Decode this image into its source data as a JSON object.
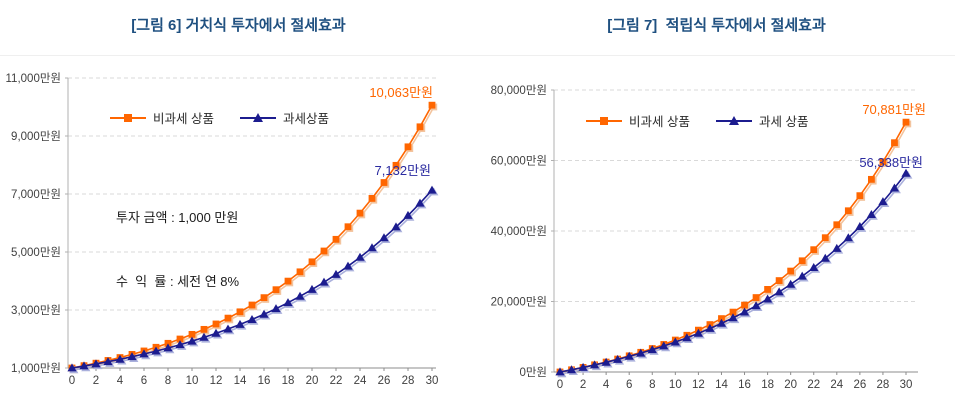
{
  "page": {
    "background": "#ffffff"
  },
  "colors": {
    "title": "#1F5080",
    "axis_text": "#404040",
    "tax_free": "#FF6600",
    "taxable": "#1C1C8F",
    "tax_free_label": "#FF6600",
    "taxable_label": "#2B2BA0",
    "gridline": "#D9D9D9"
  },
  "chart_data": [
    {
      "type": "line",
      "title": "[그림 6] 거치식 투자에서 절세효과",
      "xlabel": "",
      "ylabel": "",
      "unit": "만원",
      "x": [
        0,
        1,
        2,
        3,
        4,
        5,
        6,
        7,
        8,
        9,
        10,
        11,
        12,
        13,
        14,
        15,
        16,
        17,
        18,
        19,
        20,
        21,
        22,
        23,
        24,
        25,
        26,
        27,
        28,
        29,
        30
      ],
      "x_ticks": [
        0,
        2,
        4,
        6,
        8,
        10,
        12,
        14,
        16,
        18,
        20,
        22,
        24,
        26,
        28,
        30
      ],
      "ylim": [
        1000,
        11000
      ],
      "y_ticks": [
        1000,
        3000,
        5000,
        7000,
        9000,
        11000
      ],
      "y_tick_labels": [
        "1,000만원",
        "3,000만원",
        "5,000만원",
        "7,000만원",
        "9,000만원",
        "11,000만원"
      ],
      "grid": "dashed-horizontal",
      "legend_position": "top-inside",
      "series": [
        {
          "id": "tax-free-series",
          "name": "비과세 상품",
          "color": "#FF6600",
          "marker": "square",
          "values": [
            1000,
            1080,
            1166,
            1260,
            1360,
            1469,
            1587,
            1714,
            1851,
            1999,
            2159,
            2332,
            2518,
            2720,
            2937,
            3172,
            3426,
            3700,
            3996,
            4316,
            4661,
            5034,
            5437,
            5871,
            6341,
            6848,
            7396,
            7988,
            8627,
            9317,
            10063
          ]
        },
        {
          "id": "taxable-series",
          "name": "과세상품",
          "color": "#1C1C8F",
          "marker": "triangle",
          "values": [
            1000,
            1068,
            1140,
            1217,
            1300,
            1388,
            1482,
            1582,
            1689,
            1803,
            1925,
            2056,
            2195,
            2343,
            2502,
            2671,
            2852,
            3045,
            3251,
            3471,
            3706,
            3957,
            4225,
            4511,
            4816,
            5142,
            5490,
            5862,
            6258,
            6682,
            7132
          ]
        }
      ],
      "annotation": {
        "line1": "투자 금액 : 1,000 만원",
        "line2": "수  익  률 : 세전 연 8%"
      },
      "end_labels": [
        {
          "text": "10,063만원",
          "series": "비과세 상품",
          "color": "#FF6600"
        },
        {
          "text": "7,132만원",
          "series": "과세상품",
          "color": "#2B2BA0"
        }
      ]
    },
    {
      "type": "line",
      "title": "[그림 7]  적립식 투자에서 절세효과",
      "xlabel": "",
      "ylabel": "",
      "unit": "만원",
      "x": [
        0,
        1,
        2,
        3,
        4,
        5,
        6,
        7,
        8,
        9,
        10,
        11,
        12,
        13,
        14,
        15,
        16,
        17,
        18,
        19,
        20,
        21,
        22,
        23,
        24,
        25,
        26,
        27,
        28,
        29,
        30
      ],
      "x_ticks": [
        0,
        2,
        4,
        6,
        8,
        10,
        12,
        14,
        16,
        18,
        20,
        22,
        24,
        26,
        28,
        30
      ],
      "ylim": [
        0,
        80000
      ],
      "y_ticks": [
        0,
        20000,
        40000,
        60000,
        80000
      ],
      "y_tick_labels": [
        "0만원",
        "20,000만원",
        "40,000만원",
        "60,000만원",
        "80,000만원"
      ],
      "grid": "dashed-horizontal",
      "legend_position": "top-inside",
      "series": [
        {
          "id": "tax-free-series",
          "name": "비과세 상품",
          "color": "#FF6600",
          "marker": "square",
          "values": [
            0,
            626,
            1301,
            2031,
            2819,
            3670,
            4590,
            5583,
            6655,
            7813,
            9064,
            10414,
            11873,
            13449,
            15150,
            16988,
            18973,
            21116,
            23431,
            25931,
            28631,
            31548,
            34697,
            38098,
            41772,
            45740,
            50025,
            54652,
            59651,
            65048,
            70881
          ]
        },
        {
          "id": "taxable-series",
          "name": "과세 상품",
          "color": "#1C1C8F",
          "marker": "triangle",
          "values": [
            0,
            622,
            1286,
            1995,
            2751,
            3560,
            4422,
            5343,
            6327,
            7377,
            8498,
            9695,
            10973,
            12337,
            13794,
            15349,
            17010,
            18783,
            20676,
            22697,
            24855,
            27159,
            29619,
            32245,
            35049,
            38043,
            41240,
            44653,
            48297,
            52187,
            56338
          ]
        }
      ],
      "end_labels": [
        {
          "text": "70,881만원",
          "series": "비과세 상품",
          "color": "#FF6600"
        },
        {
          "text": "56,338만원",
          "series": "과세 상품",
          "color": "#2B2BA0"
        }
      ]
    }
  ]
}
